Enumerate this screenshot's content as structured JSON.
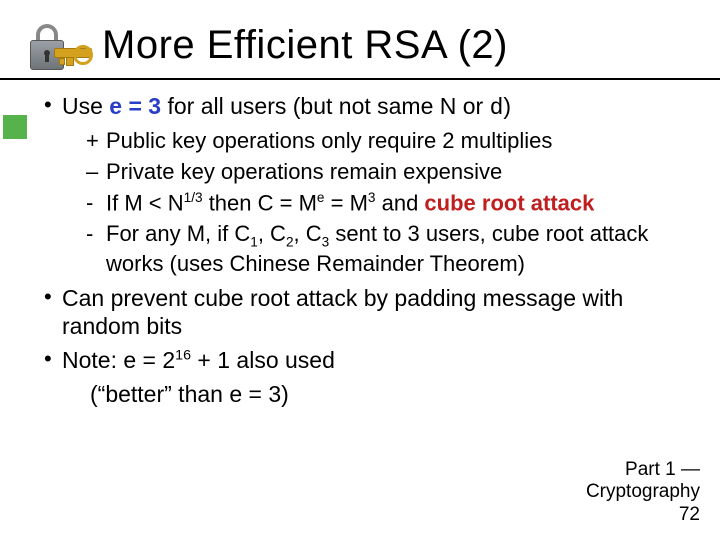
{
  "title": "More Efficient RSA (2)",
  "colors": {
    "accent_blue": "#2a3fc9",
    "accent_red": "#c01f1f",
    "tab_green": "#56b24a",
    "text": "#000000",
    "bg": "#ffffff"
  },
  "typography": {
    "family": "Comic Sans MS",
    "title_pt": 40,
    "body_pt": 23,
    "sub_pt": 22,
    "footer_pt": 19
  },
  "bullets": {
    "b1_pre": "Use ",
    "b1_hl": "e = 3",
    "b1_post_a": " for all users (but not same N or ",
    "b1_d": "d",
    "b1_post_b": ")",
    "b1_sub": {
      "s1": "Public key operations only require 2 multiplies",
      "s2": "Private key operations remain expensive",
      "s3_a": "If M < N",
      "s3_exp1": "1/3",
      "s3_b": " then C = M",
      "s3_expe": "e",
      "s3_c": " = M",
      "s3_exp3": "3",
      "s3_d": " and ",
      "s3_hl": "cube root attack",
      "s4_a": "For any M, if C",
      "s4_sub1": "1",
      "s4_b": ", C",
      "s4_sub2": "2",
      "s4_c": ", C",
      "s4_sub3": "3",
      "s4_d": " sent to 3 users, cube root attack works (uses Chinese Remainder Theorem)"
    },
    "b2": "Can prevent cube root attack by padding message with random bits",
    "b3_a": "Note: e = 2",
    "b3_exp": "16",
    "b3_b": " + 1 also used",
    "b3_note": "(“better” than e = 3)"
  },
  "footer": {
    "l1": "Part 1 —",
    "l2": "Cryptography",
    "l3": "72"
  }
}
